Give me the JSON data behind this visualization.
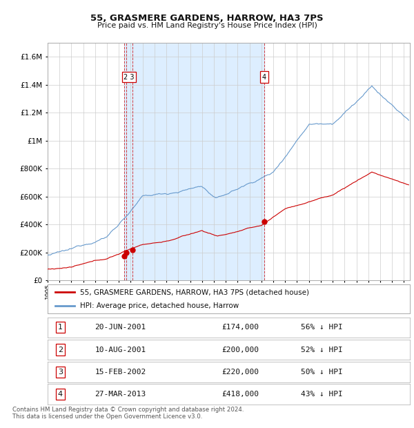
{
  "title": "55, GRASMERE GARDENS, HARROW, HA3 7PS",
  "subtitle": "Price paid vs. HM Land Registry's House Price Index (HPI)",
  "transactions": [
    {
      "num": 1,
      "date_label": "20-JUN-2001",
      "date_x": 2001.46,
      "price": 174000,
      "pct": "56% ↓ HPI"
    },
    {
      "num": 2,
      "date_label": "10-AUG-2001",
      "date_x": 2001.61,
      "price": 200000,
      "pct": "52% ↓ HPI"
    },
    {
      "num": 3,
      "date_label": "15-FEB-2002",
      "date_x": 2002.12,
      "price": 220000,
      "pct": "50% ↓ HPI"
    },
    {
      "num": 4,
      "date_label": "27-MAR-2013",
      "date_x": 2013.24,
      "price": 418000,
      "pct": "43% ↓ HPI"
    }
  ],
  "vlines_group1": [
    2001.46,
    2001.61,
    2002.12
  ],
  "vlines_group2": [
    2013.24
  ],
  "highlight_start": 2001.46,
  "highlight_end": 2013.24,
  "red_line_color": "#cc0000",
  "blue_line_color": "#6699cc",
  "highlight_color": "#ddeeff",
  "vline_color": "#cc0000",
  "background_color": "#ffffff",
  "grid_color": "#cccccc",
  "xmin": 1995.0,
  "xmax": 2025.5,
  "ymin": 0,
  "ymax": 1700000,
  "yticks": [
    0,
    200000,
    400000,
    600000,
    800000,
    1000000,
    1200000,
    1400000,
    1600000
  ],
  "xtick_years": [
    1995,
    1996,
    1997,
    1998,
    1999,
    2000,
    2001,
    2002,
    2003,
    2004,
    2005,
    2006,
    2007,
    2008,
    2009,
    2010,
    2011,
    2012,
    2013,
    2014,
    2015,
    2016,
    2017,
    2018,
    2019,
    2020,
    2021,
    2022,
    2023,
    2024,
    2025
  ],
  "footnote": "Contains HM Land Registry data © Crown copyright and database right 2024.\nThis data is licensed under the Open Government Licence v3.0.",
  "legend_red": "55, GRASMERE GARDENS, HARROW, HA3 7PS (detached house)",
  "legend_blue": "HPI: Average price, detached house, Harrow",
  "table_rows": [
    [
      1,
      "20-JUN-2001",
      "£174,000",
      "56% ↓ HPI"
    ],
    [
      2,
      "10-AUG-2001",
      "£200,000",
      "52% ↓ HPI"
    ],
    [
      3,
      "15-FEB-2002",
      "£220,000",
      "50% ↓ HPI"
    ],
    [
      4,
      "27-MAR-2013",
      "£418,000",
      "43% ↓ HPI"
    ]
  ]
}
